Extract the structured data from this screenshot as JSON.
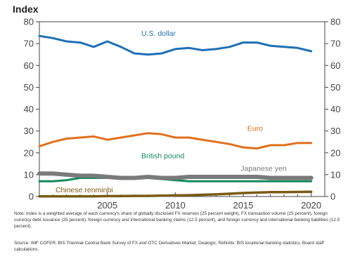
{
  "chart_data": {
    "type": "line",
    "ylabel": "Index",
    "ylim": [
      0,
      80
    ],
    "yticks": [
      0,
      10,
      20,
      30,
      40,
      50,
      60,
      70,
      80
    ],
    "xlim": [
      2000,
      2021
    ],
    "xticks": [
      2005,
      2010,
      2015,
      2020
    ],
    "grid": false,
    "series": [
      {
        "name": "U.S. dollar",
        "color": "#1f6fb5",
        "x": [
          2000,
          2001,
          2002,
          2003,
          2004,
          2005,
          2006,
          2007,
          2008,
          2009,
          2010,
          2011,
          2012,
          2013,
          2014,
          2015,
          2016,
          2017,
          2018,
          2019,
          2020
        ],
        "values": [
          73.5,
          72.5,
          71,
          70.5,
          68.5,
          71,
          68.5,
          65.5,
          65,
          65.5,
          67.5,
          68,
          67,
          67.5,
          68.5,
          70.5,
          70.5,
          69,
          68.5,
          68,
          66.5
        ]
      },
      {
        "name": "Euro",
        "color": "#e0701d",
        "x": [
          2000,
          2001,
          2002,
          2003,
          2004,
          2005,
          2006,
          2007,
          2008,
          2009,
          2010,
          2011,
          2012,
          2013,
          2014,
          2015,
          2016,
          2017,
          2018,
          2019,
          2020
        ],
        "values": [
          23,
          25,
          26.5,
          27,
          27.5,
          26,
          27,
          28,
          29,
          28.5,
          27,
          27,
          26,
          25,
          24,
          22.5,
          22,
          23.5,
          23.5,
          24.5,
          24.5
        ]
      },
      {
        "name": "British pound",
        "color": "#138a5a",
        "x": [
          2000,
          2001,
          2002,
          2003,
          2004,
          2005,
          2006,
          2007,
          2008,
          2009,
          2010,
          2011,
          2012,
          2013,
          2014,
          2015,
          2016,
          2017,
          2018,
          2019,
          2020
        ],
        "values": [
          7,
          7,
          7.5,
          8.5,
          8.5,
          8.5,
          9,
          9,
          8.5,
          8,
          7.5,
          7,
          7,
          7,
          7,
          7,
          7,
          7,
          7,
          7,
          7
        ]
      },
      {
        "name": "Japanese yen",
        "color": "#7a7a7a",
        "x": [
          2000,
          2001,
          2002,
          2003,
          2004,
          2005,
          2006,
          2007,
          2008,
          2009,
          2010,
          2011,
          2012,
          2013,
          2014,
          2015,
          2016,
          2017,
          2018,
          2019,
          2020
        ],
        "values": [
          10.5,
          10.5,
          10,
          9.5,
          9.5,
          9,
          8.5,
          8.5,
          9,
          8.5,
          8.5,
          9,
          9,
          9,
          9,
          9,
          9,
          8.5,
          8.5,
          8.5,
          8.5
        ]
      },
      {
        "name": "Chinese renminbi",
        "color": "#7a5a14",
        "x": [
          2000,
          2001,
          2002,
          2003,
          2004,
          2005,
          2006,
          2007,
          2008,
          2009,
          2010,
          2011,
          2012,
          2013,
          2014,
          2015,
          2016,
          2017,
          2018,
          2019,
          2020
        ],
        "values": [
          0.1,
          0.1,
          0.1,
          0.1,
          0.1,
          0.2,
          0.2,
          0.3,
          0.3,
          0.4,
          0.5,
          0.6,
          0.8,
          1,
          1.3,
          1.6,
          1.8,
          2,
          2,
          2.1,
          2.2
        ]
      }
    ]
  },
  "note": "Note: Index is a weighted average of each currency's share of globally disclosed FX reserves (25 percent weight), FX transaction volume (25 percent), foreign currency debt issuance (25 percent), foreign currency and international banking claims (12.5 percent), and foreign currency and international banking liabilities (12.5 percent).",
  "source": "Source: IMF COFER; BIS Triennial Central Bank Survey of FX and OTC Derivatives Market; Dealogic; Refinitiv; BIS locational banking statistics; Board staff calculations."
}
